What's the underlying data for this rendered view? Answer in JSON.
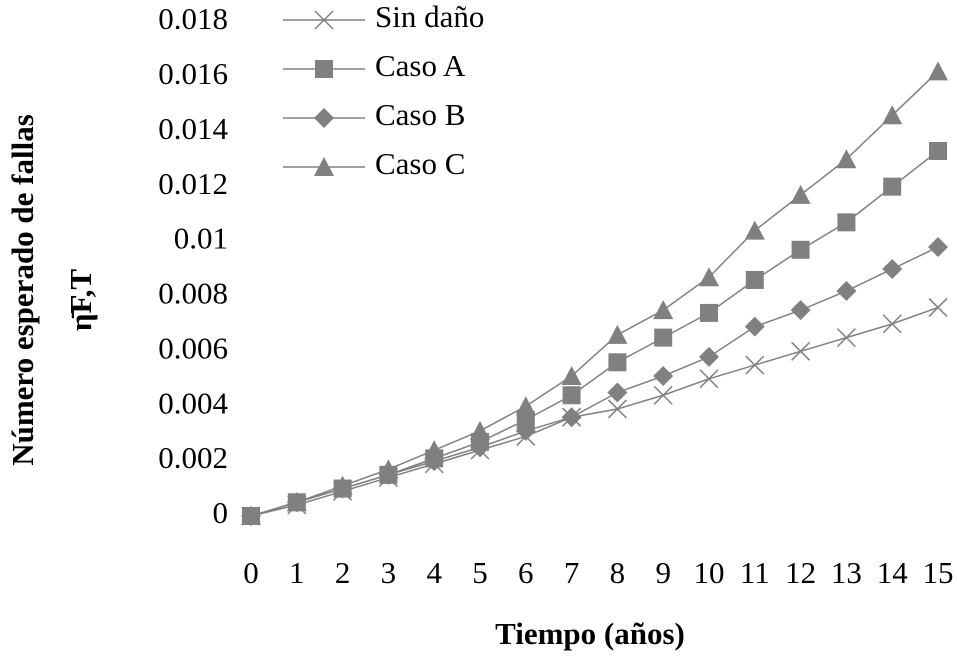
{
  "chart_data": {
    "type": "line",
    "xlabel": "Tiempo (años)",
    "ylabel": "Número esperado de fallas",
    "ylabel_symbol": "η̄F,T",
    "x": [
      0,
      1,
      2,
      3,
      4,
      5,
      6,
      7,
      8,
      9,
      10,
      11,
      12,
      13,
      14,
      15
    ],
    "xlim": [
      0,
      15
    ],
    "xticks": [
      0,
      1,
      2,
      3,
      4,
      5,
      6,
      7,
      8,
      9,
      10,
      11,
      12,
      13,
      14,
      15
    ],
    "ylim": [
      0,
      0.018
    ],
    "yticks": [
      0,
      0.002,
      0.004,
      0.006,
      0.008,
      0.01,
      0.012,
      0.014,
      0.016,
      0.018
    ],
    "grid": false,
    "legend": "upper left",
    "series": [
      {
        "name": "Sin daño",
        "color": "#808080",
        "marker": "x",
        "values": [
          0,
          0.0004,
          0.0009,
          0.0014,
          0.0019,
          0.0024,
          0.0029,
          0.0036,
          0.0039,
          0.0044,
          0.005,
          0.0055,
          0.006,
          0.0065,
          0.007,
          0.0076
        ]
      },
      {
        "name": "Caso A",
        "color": "#808080",
        "marker": "square",
        "values": [
          0,
          0.0005,
          0.001,
          0.0015,
          0.0021,
          0.0027,
          0.0035,
          0.0044,
          0.0056,
          0.0065,
          0.0074,
          0.0086,
          0.0097,
          0.0107,
          0.012,
          0.0133
        ]
      },
      {
        "name": "Caso B",
        "color": "#808080",
        "marker": "diamond",
        "values": [
          0,
          0.0005,
          0.001,
          0.0015,
          0.002,
          0.0025,
          0.0031,
          0.0036,
          0.0045,
          0.0051,
          0.0058,
          0.0069,
          0.0075,
          0.0082,
          0.009,
          0.0098
        ]
      },
      {
        "name": "Caso C",
        "color": "#808080",
        "marker": "triangle",
        "values": [
          0,
          0.0005,
          0.0011,
          0.0017,
          0.0024,
          0.0031,
          0.004,
          0.0051,
          0.0066,
          0.0075,
          0.0087,
          0.0104,
          0.0117,
          0.013,
          0.0146,
          0.0162
        ]
      }
    ]
  }
}
